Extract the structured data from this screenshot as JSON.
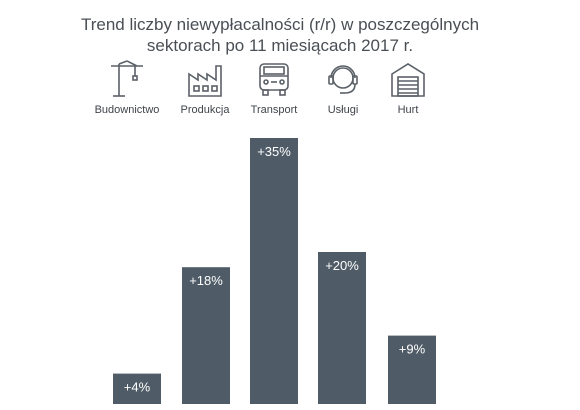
{
  "title_lines": [
    "Trend liczby niewypłacalności (r/r) w poszczególnych",
    "sektorach po 11 miesiącach 2017 r."
  ],
  "colors": {
    "bar": "#4f5c67",
    "text": "#4a4f55",
    "icon_stroke": "#5b6168",
    "label_inside": "#ffffff",
    "label_outside": "#3f444a"
  },
  "sectors": [
    {
      "label": "Budownictwo",
      "icon": "crane-icon"
    },
    {
      "label": "Produkcja",
      "icon": "factory-icon"
    },
    {
      "label": "Transport",
      "icon": "truck-icon"
    },
    {
      "label": "Usługi",
      "icon": "headset-icon"
    },
    {
      "label": "Hurt",
      "icon": "warehouse-icon"
    }
  ],
  "chart_data": {
    "type": "bar",
    "title": "Trend liczby niewypłacalności (r/r) w poszczególnych sektorach po 11 miesiącach 2017 r.",
    "categories": [
      "Budownictwo",
      "Produkcja",
      "Transport",
      "Usługi",
      "Hurt"
    ],
    "values": [
      4,
      18,
      35,
      20,
      9
    ],
    "data_labels": [
      "+4%",
      "+18%",
      "+35%",
      "+20%",
      "+9%"
    ],
    "unit": "%",
    "xlabel": "",
    "ylabel": "",
    "grid": false,
    "ylim": [
      0,
      35
    ]
  }
}
